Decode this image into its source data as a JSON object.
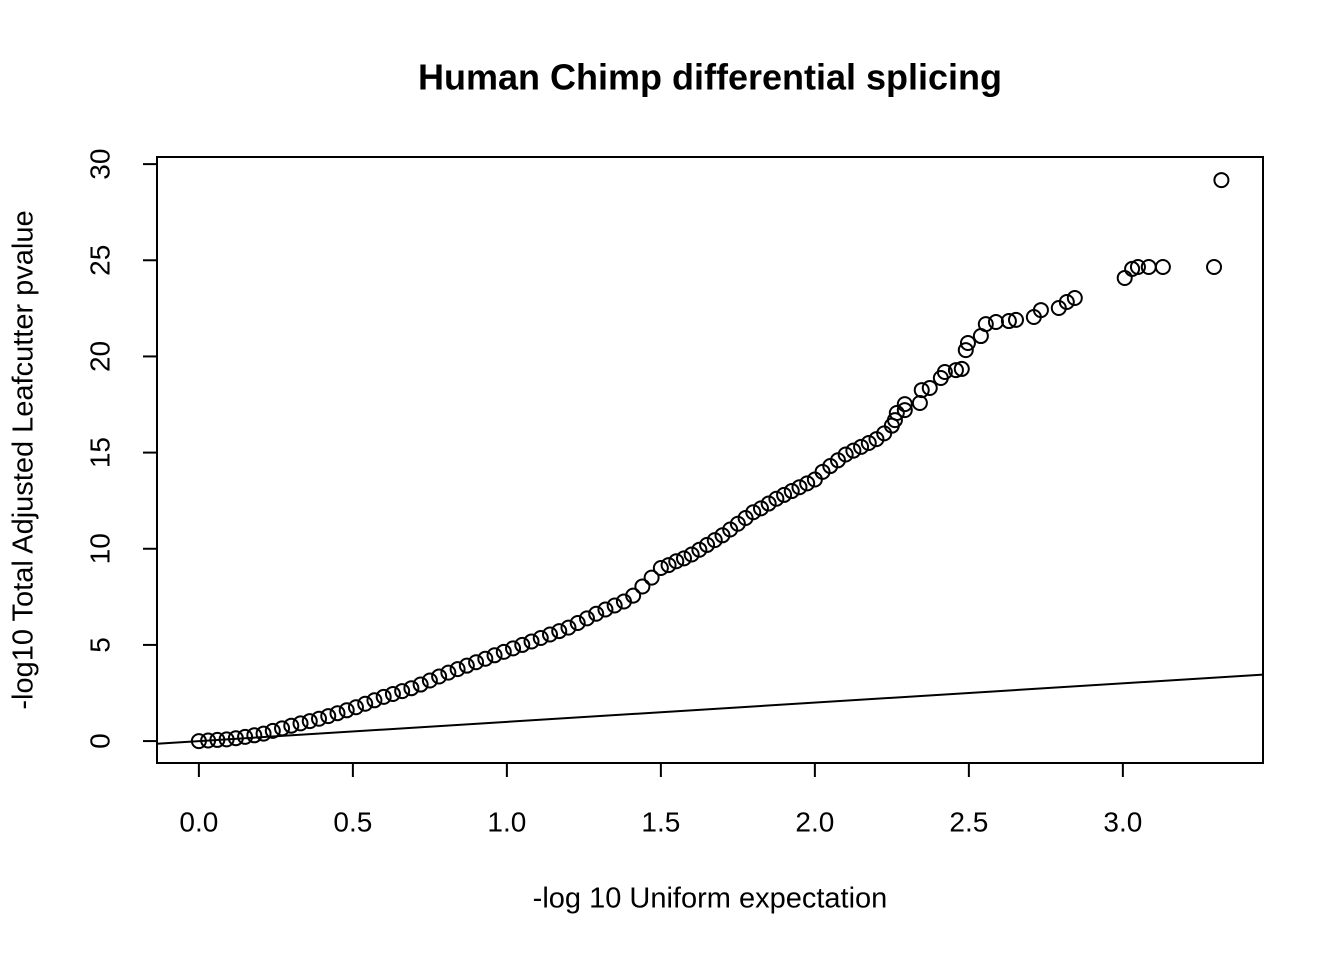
{
  "chart_data": {
    "type": "scatter",
    "title": "Human Chimp differential splicing",
    "x_label": "-log 10 Uniform expectation",
    "y_label": "-log10 Total Adjusted Leafcutter pvalue",
    "xlim": [
      -0.136,
      3.455
    ],
    "ylim": [
      -1.14,
      30.37
    ],
    "xticks": [
      {
        "value": 0,
        "label": "0.0"
      },
      0.5,
      {
        "value": 1,
        "label": "1.0"
      },
      1.5,
      {
        "value": 2,
        "label": "2.0"
      },
      2.5,
      {
        "value": 3,
        "label": "3.0"
      }
    ],
    "yticks": [
      0,
      5,
      10,
      15,
      20,
      25,
      30
    ],
    "abline": {
      "intercept": 0,
      "slope": 1
    },
    "color": "#000000",
    "x": [
      0,
      0.03,
      0.06,
      0.09,
      0.12,
      0.15,
      0.18,
      0.21,
      0.24,
      0.27,
      0.3,
      0.33,
      0.36,
      0.39,
      0.42,
      0.45,
      0.48,
      0.51,
      0.54,
      0.57,
      0.6,
      0.63,
      0.66,
      0.69,
      0.72,
      0.75,
      0.78,
      0.81,
      0.84,
      0.87,
      0.9,
      0.93,
      0.96,
      0.99,
      1.02,
      1.05,
      1.08,
      1.11,
      1.14,
      1.17,
      1.2,
      1.23,
      1.26,
      1.29,
      1.32,
      1.35,
      1.38,
      1.41,
      1.44,
      1.47,
      1.5,
      1.525,
      1.55,
      1.575,
      1.6,
      1.625,
      1.65,
      1.675,
      1.7,
      1.725,
      1.75,
      1.775,
      1.8,
      1.825,
      1.85,
      1.875,
      1.9,
      1.925,
      1.95,
      1.975,
      2.0,
      2.025,
      2.05,
      2.075,
      2.1,
      2.125,
      2.15,
      2.175,
      2.2,
      2.225,
      2.25,
      2.26,
      2.266,
      2.292,
      2.292,
      2.341,
      2.347,
      2.373,
      2.409,
      2.422,
      2.458,
      2.477,
      2.49,
      2.497,
      2.539,
      2.555,
      2.588,
      2.63,
      2.653,
      2.711,
      2.734,
      2.792,
      2.818,
      2.844,
      3.006,
      3.03,
      3.049,
      3.084,
      3.13,
      3.296,
      3.32
    ],
    "values": [
      0,
      0.03,
      0.06,
      0.09,
      0.15,
      0.22,
      0.3,
      0.39,
      0.53,
      0.66,
      0.8,
      0.92,
      1.04,
      1.16,
      1.3,
      1.45,
      1.6,
      1.76,
      1.94,
      2.12,
      2.3,
      2.45,
      2.6,
      2.75,
      2.94,
      3.15,
      3.36,
      3.56,
      3.74,
      3.92,
      4.1,
      4.28,
      4.46,
      4.64,
      4.82,
      5.0,
      5.18,
      5.36,
      5.54,
      5.72,
      5.9,
      6.14,
      6.38,
      6.62,
      6.84,
      7.05,
      7.26,
      7.56,
      8.04,
      8.5,
      9.0,
      9.15,
      9.35,
      9.5,
      9.7,
      9.95,
      10.2,
      10.45,
      10.7,
      11.0,
      11.3,
      11.6,
      11.9,
      12.1,
      12.35,
      12.6,
      12.8,
      13.0,
      13.2,
      13.4,
      13.6,
      14.0,
      14.3,
      14.6,
      14.9,
      15.1,
      15.3,
      15.5,
      15.7,
      16.0,
      16.4,
      16.69,
      17.06,
      17.21,
      17.52,
      17.58,
      18.25,
      18.36,
      18.88,
      19.19,
      19.29,
      19.35,
      20.33,
      20.7,
      21.06,
      21.68,
      21.79,
      21.84,
      21.9,
      22.05,
      22.41,
      22.52,
      22.83,
      23.04,
      24.08,
      24.55,
      24.65,
      24.65,
      24.65,
      24.65,
      29.17
    ]
  }
}
